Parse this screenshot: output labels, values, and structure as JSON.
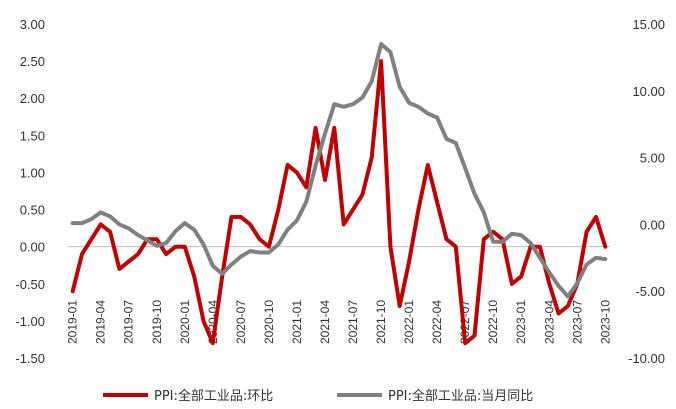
{
  "chart_data": {
    "type": "line",
    "title": "",
    "xlabel": "",
    "ylabel": "",
    "x_tick_labels": [
      "2019-01",
      "2019-04",
      "2019-07",
      "2019-10",
      "2020-01",
      "2020-04",
      "2020-07",
      "2020-10",
      "2021-01",
      "2021-04",
      "2021-07",
      "2021-10",
      "2022-01",
      "2022-04",
      "2022-07",
      "2022-10",
      "2023-01",
      "2023-04",
      "2023-07",
      "2023-10"
    ],
    "y_left": {
      "min": -1.5,
      "max": 3.0,
      "step": 0.5,
      "tick_labels": [
        "3.00",
        "2.50",
        "2.00",
        "1.50",
        "1.00",
        "0.50",
        "0.00",
        "-0.50",
        "-1.00",
        "-1.50"
      ]
    },
    "y_right": {
      "min": -10,
      "max": 15,
      "step": 5,
      "tick_labels": [
        "15.00",
        "10.00",
        "5.00",
        "0.00",
        "-5.00",
        "-10.00"
      ]
    },
    "legend_position": "bottom",
    "grid": false,
    "series": [
      {
        "name": "PPI:全部工业品:环比",
        "axis": "left",
        "color": "#C00000",
        "values": [
          -0.6,
          -0.1,
          0.1,
          0.3,
          0.2,
          -0.3,
          -0.2,
          -0.1,
          0.1,
          0.1,
          -0.1,
          0.0,
          0.0,
          -0.4,
          -1.0,
          -1.3,
          -0.4,
          0.4,
          0.4,
          0.3,
          0.1,
          0.0,
          0.5,
          1.1,
          1.0,
          0.8,
          1.6,
          0.9,
          1.6,
          0.3,
          0.5,
          0.7,
          1.2,
          2.5,
          0.0,
          -0.8,
          -0.2,
          0.5,
          1.1,
          0.6,
          0.1,
          0.0,
          -1.3,
          -1.2,
          0.1,
          0.2,
          0.1,
          -0.5,
          -0.4,
          0.0,
          0.0,
          -0.5,
          -0.9,
          -0.8,
          -0.5,
          0.2,
          0.4,
          0.0
        ]
      },
      {
        "name": "PPI:全部工业品:当月同比",
        "axis": "right",
        "color": "#808080",
        "values": [
          0.1,
          0.1,
          0.4,
          0.9,
          0.6,
          0.0,
          -0.3,
          -0.8,
          -1.2,
          -1.6,
          -1.4,
          -0.5,
          0.1,
          -0.4,
          -1.5,
          -3.1,
          -3.7,
          -3.0,
          -2.4,
          -2.0,
          -2.1,
          -2.1,
          -1.5,
          -0.4,
          0.3,
          1.7,
          4.4,
          6.8,
          9.0,
          8.8,
          9.0,
          9.5,
          10.7,
          13.5,
          12.9,
          10.3,
          9.1,
          8.8,
          8.3,
          8.0,
          6.4,
          6.1,
          4.2,
          2.3,
          0.9,
          -1.3,
          -1.3,
          -0.7,
          -0.8,
          -1.4,
          -2.5,
          -3.6,
          -4.6,
          -5.4,
          -4.4,
          -3.0,
          -2.5,
          -2.6
        ]
      }
    ]
  }
}
